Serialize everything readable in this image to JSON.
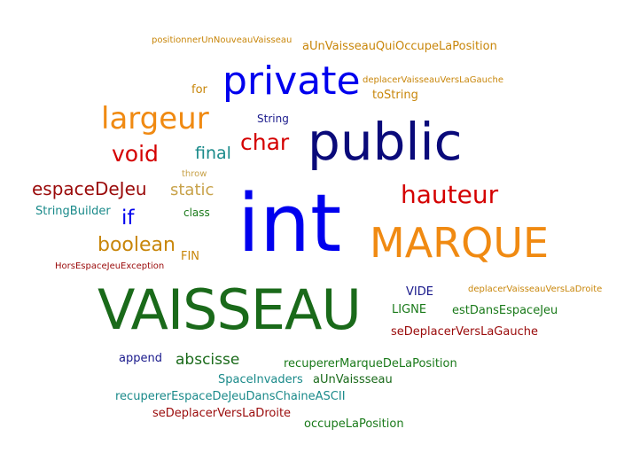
{
  "words": [
    {
      "text": "positionnerUnNouveauVaisseau",
      "color": "#c8860a"
    },
    {
      "text": "aUnVaisseauQuiOccupeLaPosition",
      "color": "#c8860a"
    },
    {
      "text": "for",
      "color": "#c8860a"
    },
    {
      "text": "private",
      "color": "#0000ee"
    },
    {
      "text": "deplacerVaisseauVersLaGauche",
      "color": "#c8860a"
    },
    {
      "text": "toString",
      "color": "#c8860a"
    },
    {
      "text": "largeur",
      "color": "#f08a12"
    },
    {
      "text": "String",
      "color": "#1a1a8c"
    },
    {
      "text": "public",
      "color": "#0a0a7a"
    },
    {
      "text": "char",
      "color": "#d40000"
    },
    {
      "text": "void",
      "color": "#d40000"
    },
    {
      "text": "final",
      "color": "#1a8a8a"
    },
    {
      "text": "throw",
      "color": "#c8a24a"
    },
    {
      "text": "espaceDeJeu",
      "color": "#9a0a0a"
    },
    {
      "text": "static",
      "color": "#c8a24a"
    },
    {
      "text": "hauteur",
      "color": "#d40000"
    },
    {
      "text": "StringBuilder",
      "color": "#1a8a8a"
    },
    {
      "text": "if",
      "color": "#0000ee"
    },
    {
      "text": "class",
      "color": "#1a7a1a"
    },
    {
      "text": "int",
      "color": "#0000ee"
    },
    {
      "text": "MARQUE",
      "color": "#f08a12"
    },
    {
      "text": "boolean",
      "color": "#c8860a"
    },
    {
      "text": "FIN",
      "color": "#c8860a"
    },
    {
      "text": "HorsEspaceJeuException",
      "color": "#9a0a0a"
    },
    {
      "text": "VAISSEAU",
      "color": "#1a6a1a"
    },
    {
      "text": "VIDE",
      "color": "#1a1a8c"
    },
    {
      "text": "deplacerVaisseauVersLaDroite",
      "color": "#c8860a"
    },
    {
      "text": "LIGNE",
      "color": "#1a7a1a"
    },
    {
      "text": "estDansEspaceJeu",
      "color": "#1a7a1a"
    },
    {
      "text": "seDeplacerVersLaGauche",
      "color": "#9a0a0a"
    },
    {
      "text": "append",
      "color": "#1a1a8c"
    },
    {
      "text": "abscisse",
      "color": "#1a6a1a"
    },
    {
      "text": "recupererMarqueDeLaPosition",
      "color": "#1a7a1a"
    },
    {
      "text": "SpaceInvaders",
      "color": "#1a8a8a"
    },
    {
      "text": "aUnVaissseau",
      "color": "#1a6a1a"
    },
    {
      "text": "recupererEspaceDeJeuDansChaineASCII",
      "color": "#1a8a8a"
    },
    {
      "text": "seDeplacerVersLaDroite",
      "color": "#9a0a0a"
    },
    {
      "text": "occupeLaPosition",
      "color": "#1a7a1a"
    }
  ]
}
